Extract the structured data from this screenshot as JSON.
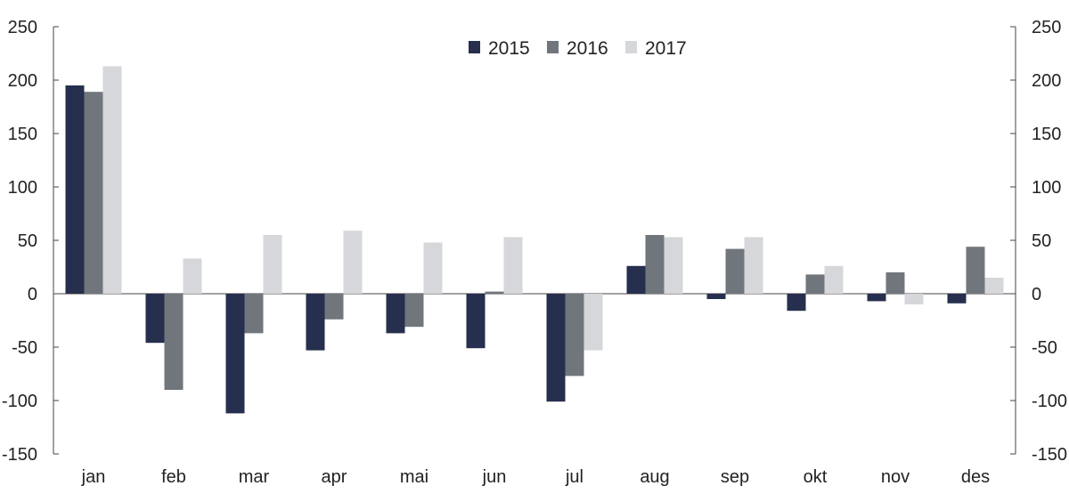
{
  "chart_data": {
    "type": "bar",
    "categories": [
      "jan",
      "feb",
      "mar",
      "apr",
      "mai",
      "jun",
      "jul",
      "aug",
      "sep",
      "okt",
      "nov",
      "des"
    ],
    "series": [
      {
        "name": "2015",
        "color": "#262f4d",
        "values": [
          195,
          -46,
          -112,
          -53,
          -37,
          -51,
          -101,
          26,
          -5,
          -16,
          -7,
          -9
        ]
      },
      {
        "name": "2016",
        "color": "#71767d",
        "values": [
          189,
          -90,
          -37,
          -24,
          -31,
          2,
          -77,
          55,
          42,
          18,
          20,
          44
        ]
      },
      {
        "name": "2017",
        "color": "#d6d7da",
        "values": [
          213,
          33,
          55,
          59,
          48,
          53,
          -53,
          53,
          53,
          26,
          -10,
          15
        ]
      }
    ],
    "ylim": [
      -150,
      250
    ],
    "yticks": [
      250,
      200,
      150,
      100,
      50,
      0,
      -50,
      -100,
      -150
    ],
    "ytick_labels": [
      "250",
      "200",
      "150",
      "100",
      "50",
      "0",
      "-50",
      "-100",
      "-150"
    ],
    "legend_position": "top-center",
    "grid": false,
    "secondary_axis_right": true
  }
}
